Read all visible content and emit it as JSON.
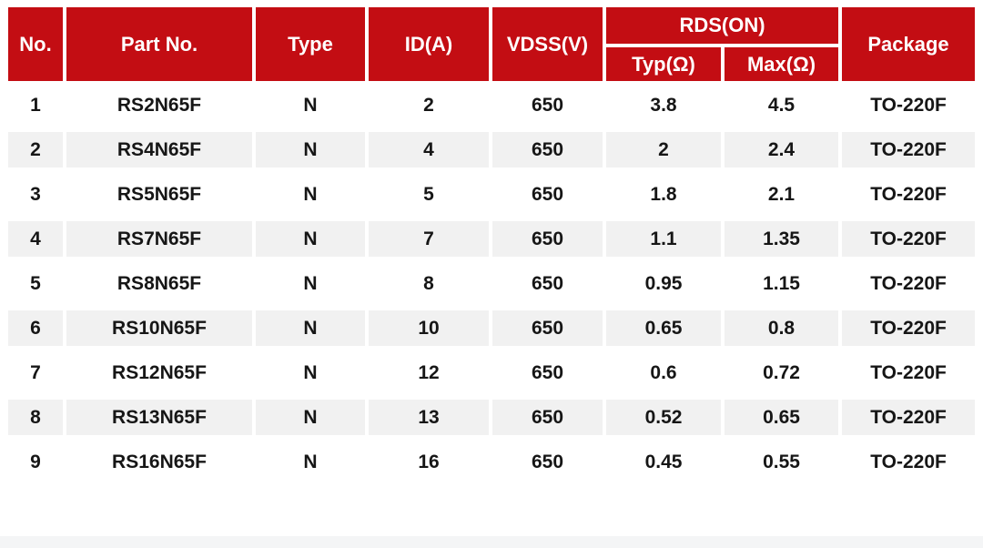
{
  "chart_data": {
    "type": "table",
    "header": {
      "no": "No.",
      "part_no": "Part No.",
      "type": "Type",
      "id_a": "ID(A)",
      "vdss_v": "VDSS(V)",
      "rds_on": "RDS(ON)",
      "typ_ohm": "Typ(Ω)",
      "max_ohm": "Max(Ω)",
      "package": "Package"
    },
    "rows": [
      {
        "no": "1",
        "part_no": "RS2N65F",
        "type": "N",
        "id_a": "2",
        "vdss_v": "650",
        "rds_typ": "3.8",
        "rds_max": "4.5",
        "package": "TO-220F"
      },
      {
        "no": "2",
        "part_no": "RS4N65F",
        "type": "N",
        "id_a": "4",
        "vdss_v": "650",
        "rds_typ": "2",
        "rds_max": "2.4",
        "package": "TO-220F"
      },
      {
        "no": "3",
        "part_no": "RS5N65F",
        "type": "N",
        "id_a": "5",
        "vdss_v": "650",
        "rds_typ": "1.8",
        "rds_max": "2.1",
        "package": "TO-220F"
      },
      {
        "no": "4",
        "part_no": "RS7N65F",
        "type": "N",
        "id_a": "7",
        "vdss_v": "650",
        "rds_typ": "1.1",
        "rds_max": "1.35",
        "package": "TO-220F"
      },
      {
        "no": "5",
        "part_no": "RS8N65F",
        "type": "N",
        "id_a": "8",
        "vdss_v": "650",
        "rds_typ": "0.95",
        "rds_max": "1.15",
        "package": "TO-220F"
      },
      {
        "no": "6",
        "part_no": "RS10N65F",
        "type": "N",
        "id_a": "10",
        "vdss_v": "650",
        "rds_typ": "0.65",
        "rds_max": "0.8",
        "package": "TO-220F"
      },
      {
        "no": "7",
        "part_no": "RS12N65F",
        "type": "N",
        "id_a": "12",
        "vdss_v": "650",
        "rds_typ": "0.6",
        "rds_max": "0.72",
        "package": "TO-220F"
      },
      {
        "no": "8",
        "part_no": "RS13N65F",
        "type": "N",
        "id_a": "13",
        "vdss_v": "650",
        "rds_typ": "0.52",
        "rds_max": "0.65",
        "package": "TO-220F"
      },
      {
        "no": "9",
        "part_no": "RS16N65F",
        "type": "N",
        "id_a": "16",
        "vdss_v": "650",
        "rds_typ": "0.45",
        "rds_max": "0.55",
        "package": "TO-220F"
      }
    ]
  },
  "colors": {
    "header_bg": "#c30d13",
    "header_text": "#ffffff",
    "stripe_bg": "#f1f1f1",
    "row_bg": "#ffffff",
    "body_text": "#161616",
    "footer_strip": "#f4f5f6"
  }
}
